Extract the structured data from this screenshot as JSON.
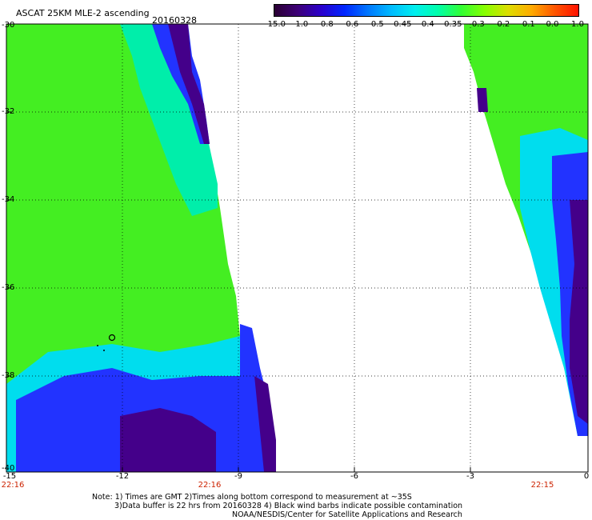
{
  "header": {
    "title": "ASCAT 25KM MLE-2 ascending",
    "date": "20160328"
  },
  "colorbar": {
    "labels": [
      "-15.0",
      "-1.0",
      "-0.8",
      "-0.6",
      "-0.5",
      "-0.45",
      "-0.4",
      "-0.35",
      "-0.3",
      "-0.2",
      "-0.1",
      "0.0",
      "1.0"
    ],
    "colors": [
      "#2a0033",
      "#3d0077",
      "#2a00cc",
      "#0026ff",
      "#0077ff",
      "#00bbff",
      "#00eeee",
      "#00ffaa",
      "#33ff33",
      "#88ff00",
      "#dddd00",
      "#ffaa00",
      "#ff5500",
      "#ff1100"
    ]
  },
  "axes": {
    "lat_labels": [
      "-30",
      "-32",
      "-34",
      "-36",
      "-38",
      "-40"
    ],
    "lon_labels": [
      "-15",
      "-12",
      "-9",
      "-6",
      "-3",
      "0"
    ],
    "time_labels": [
      "22:16",
      "22:16",
      "22:15"
    ]
  },
  "notes": {
    "line1": "Note: 1) Times are GMT 2)Times along bottom correspond to measurement at ~35S",
    "line2": "3)Data buffer is 22 hrs from 20160328 4) Black wind barbs indicate possible contamination",
    "line3": "NOAA/NESDIS/Center for Satellite Applications and Research"
  }
}
